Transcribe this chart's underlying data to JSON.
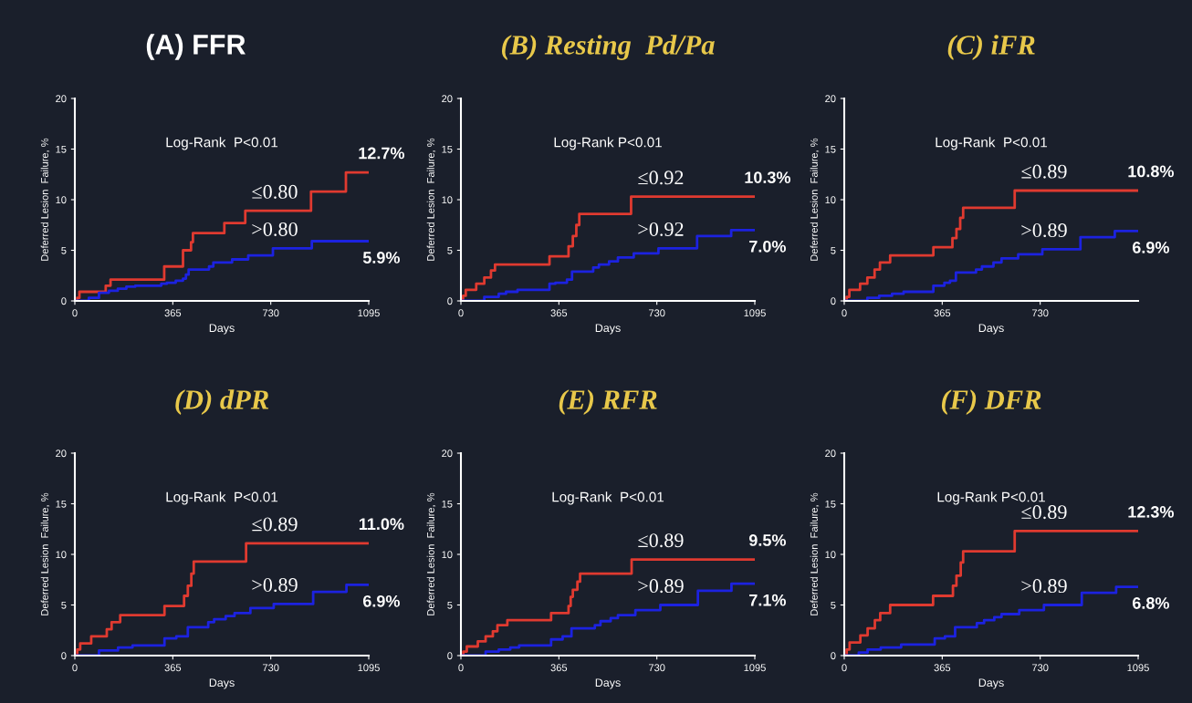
{
  "chart_data": [
    {
      "type": "step",
      "title": "(A) FFR",
      "xlabel": "Days",
      "ylabel": "Deferred Lesion  Failure, %",
      "xlim": [
        0,
        1095
      ],
      "ylim": [
        0,
        20
      ],
      "xticks": [
        0,
        365,
        730,
        1095
      ],
      "yticks": [
        0,
        5,
        10,
        15,
        20
      ],
      "grid": false,
      "legend": false,
      "series": [
        {
          "name": "≤0.80",
          "color": "#e03a30",
          "x": [
            0,
            9,
            17,
            115,
            133,
            333,
            403,
            433,
            440,
            557,
            635,
            880,
            1010,
            1095
          ],
          "values": [
            0,
            0.3,
            0.9,
            1.5,
            2.1,
            3.4,
            5.0,
            5.8,
            6.7,
            7.7,
            8.9,
            10.8,
            12.7,
            12.7
          ]
        },
        {
          "name": ">0.80",
          "color": "#1c22e0",
          "x": [
            0,
            52,
            90,
            127,
            160,
            192,
            225,
            322,
            343,
            376,
            403,
            414,
            424,
            500,
            516,
            586,
            646,
            738,
            883,
            1095
          ],
          "values": [
            0,
            0.3,
            0.8,
            1.0,
            1.2,
            1.4,
            1.5,
            1.7,
            1.8,
            2.0,
            2.2,
            2.6,
            3.1,
            3.4,
            3.8,
            4.1,
            4.5,
            5.2,
            5.9,
            5.9
          ]
        }
      ],
      "annotations": [
        "Log-Rank  P<0.01",
        "12.7%",
        "5.9%"
      ]
    },
    {
      "type": "step",
      "title": "(B) Resting  Pd/Pa",
      "xlabel": "Days",
      "ylabel": "Deferred Lesion  Failure, %",
      "xlim": [
        0,
        1095
      ],
      "ylim": [
        0,
        20
      ],
      "xticks": [
        0,
        365,
        730,
        1095
      ],
      "yticks": [
        0,
        5,
        10,
        15,
        20
      ],
      "grid": false,
      "legend": false,
      "series": [
        {
          "name": "≤0.92",
          "color": "#e03a30",
          "x": [
            0,
            8,
            18,
            57,
            87,
            112,
            127,
            330,
            401,
            417,
            430,
            441,
            634,
            1095
          ],
          "values": [
            0,
            0.5,
            1.1,
            1.7,
            2.3,
            3.0,
            3.6,
            4.4,
            5.4,
            6.4,
            7.5,
            8.6,
            10.3,
            10.3
          ]
        },
        {
          "name": ">0.92",
          "color": "#1c22e0",
          "x": [
            0,
            87,
            141,
            168,
            211,
            330,
            352,
            395,
            414,
            493,
            514,
            552,
            585,
            644,
            736,
            880,
            1007,
            1095
          ],
          "values": [
            0,
            0.4,
            0.7,
            0.9,
            1.1,
            1.7,
            1.8,
            2.1,
            2.9,
            3.3,
            3.6,
            3.9,
            4.3,
            4.7,
            5.2,
            6.4,
            7.0,
            7.0
          ]
        }
      ],
      "annotations": [
        "Log-Rank P<0.01",
        "10.3%",
        "7.0%"
      ]
    },
    {
      "type": "step",
      "title": "(C) iFR",
      "xlabel": "Days",
      "ylabel": "Deferred Lesion  Failure, %",
      "xlim": [
        0,
        1095
      ],
      "ylim": [
        0,
        20
      ],
      "xticks": [
        0,
        365,
        730
      ],
      "yticks": [
        0,
        5,
        10,
        15,
        20
      ],
      "grid": false,
      "legend": false,
      "series": [
        {
          "name": "≤0.89",
          "color": "#e03a30",
          "x": [
            0,
            9,
            19,
            59,
            86,
            113,
            133,
            171,
            332,
            403,
            418,
            432,
            443,
            635,
            1095
          ],
          "values": [
            0,
            0.4,
            1.1,
            1.7,
            2.3,
            3.1,
            3.8,
            4.5,
            5.3,
            6.2,
            7.1,
            8.2,
            9.2,
            10.9,
            10.9
          ]
        },
        {
          "name": ">0.89",
          "color": "#1c22e0",
          "x": [
            0,
            86,
            130,
            178,
            221,
            332,
            373,
            394,
            416,
            491,
            513,
            556,
            586,
            648,
            738,
            880,
            1008,
            1095
          ],
          "values": [
            0,
            0.3,
            0.5,
            0.7,
            0.9,
            1.5,
            1.8,
            2.0,
            2.8,
            3.1,
            3.4,
            3.8,
            4.2,
            4.6,
            5.1,
            6.3,
            6.9,
            6.9
          ]
        }
      ],
      "annotations": [
        "Log-Rank  P<0.01",
        "10.8%",
        "6.9%"
      ]
    },
    {
      "type": "step",
      "title": "(D) dPR",
      "xlabel": "Days",
      "ylabel": "Deferred Lesion  Failure, %",
      "xlim": [
        0,
        1095
      ],
      "ylim": [
        0,
        20
      ],
      "xticks": [
        0,
        365,
        730,
        1095
      ],
      "yticks": [
        0,
        5,
        10,
        15,
        20
      ],
      "grid": false,
      "legend": false,
      "series": [
        {
          "name": "≤0.89",
          "color": "#e03a30",
          "x": [
            0,
            9,
            20,
            61,
            119,
            137,
            169,
            334,
            407,
            421,
            434,
            443,
            638,
            1095
          ],
          "values": [
            0,
            0.6,
            1.2,
            1.9,
            2.6,
            3.3,
            4.0,
            4.9,
            5.9,
            6.9,
            8.1,
            9.3,
            11.1,
            11.1
          ]
        },
        {
          "name": ">0.89",
          "color": "#1c22e0",
          "x": [
            0,
            90,
            161,
            215,
            334,
            378,
            421,
            497,
            519,
            562,
            595,
            654,
            741,
            888,
            1012,
            1095
          ],
          "values": [
            0,
            0.5,
            0.8,
            1.0,
            1.7,
            1.9,
            2.8,
            3.3,
            3.6,
            3.9,
            4.2,
            4.7,
            5.1,
            6.3,
            7.0,
            7.0
          ]
        }
      ],
      "annotations": [
        "Log-Rank  P<0.01",
        "11.0%",
        "6.9%"
      ]
    },
    {
      "type": "step",
      "title": "(E) RFR",
      "xlabel": "Days",
      "ylabel": "Deferred Lesion  Failure, %",
      "xlim": [
        0,
        1095
      ],
      "ylim": [
        0,
        20
      ],
      "xticks": [
        0,
        365,
        730,
        1095
      ],
      "yticks": [
        0,
        5,
        10,
        15,
        20
      ],
      "grid": false,
      "legend": false,
      "series": [
        {
          "name": "≤0.89",
          "color": "#e03a30",
          "x": [
            0,
            9,
            22,
            63,
            92,
            119,
            136,
            173,
            336,
            401,
            409,
            417,
            434,
            444,
            636,
            1095
          ],
          "values": [
            0,
            0.4,
            0.9,
            1.4,
            1.9,
            2.4,
            3.0,
            3.5,
            4.2,
            4.9,
            5.8,
            6.5,
            7.3,
            8.1,
            9.5,
            9.5
          ]
        },
        {
          "name": ">0.89",
          "color": "#1c22e0",
          "x": [
            0,
            92,
            141,
            184,
            217,
            336,
            379,
            412,
            499,
            520,
            558,
            585,
            650,
            743,
            883,
            1008,
            1095
          ],
          "values": [
            0,
            0.4,
            0.6,
            0.8,
            1.0,
            1.6,
            1.9,
            2.7,
            3.0,
            3.4,
            3.7,
            4.0,
            4.5,
            5.0,
            6.4,
            7.1,
            7.1
          ]
        }
      ],
      "annotations": [
        "Log-Rank  P<0.01",
        "9.5%",
        "7.1%"
      ]
    },
    {
      "type": "step",
      "title": "(F) DFR",
      "xlabel": "Days",
      "ylabel": "Deferred Lesion  Failure, %",
      "xlim": [
        0,
        1095
      ],
      "ylim": [
        0,
        20
      ],
      "xticks": [
        0,
        365,
        730,
        1095
      ],
      "yticks": [
        0,
        5,
        10,
        15,
        20
      ],
      "grid": false,
      "legend": false,
      "series": [
        {
          "name": "≤0.89",
          "color": "#e03a30",
          "x": [
            0,
            9,
            20,
            60,
            87,
            114,
            134,
            171,
            331,
            405,
            418,
            434,
            443,
            635,
            1095
          ],
          "values": [
            0,
            0.6,
            1.3,
            2.0,
            2.7,
            3.5,
            4.2,
            5.0,
            5.9,
            6.9,
            7.9,
            9.2,
            10.3,
            12.3,
            12.3
          ]
        },
        {
          "name": ">0.89",
          "color": "#1c22e0",
          "x": [
            0,
            54,
            87,
            136,
            212,
            337,
            375,
            413,
            494,
            521,
            559,
            586,
            652,
            744,
            885,
            1013,
            1095
          ],
          "values": [
            0,
            0.3,
            0.6,
            0.8,
            1.1,
            1.7,
            1.9,
            2.8,
            3.2,
            3.5,
            3.8,
            4.1,
            4.5,
            5.0,
            6.2,
            6.8,
            6.8
          ]
        }
      ],
      "annotations": [
        "Log-Rank P<0.01",
        "12.3%",
        "6.8%"
      ]
    }
  ]
}
